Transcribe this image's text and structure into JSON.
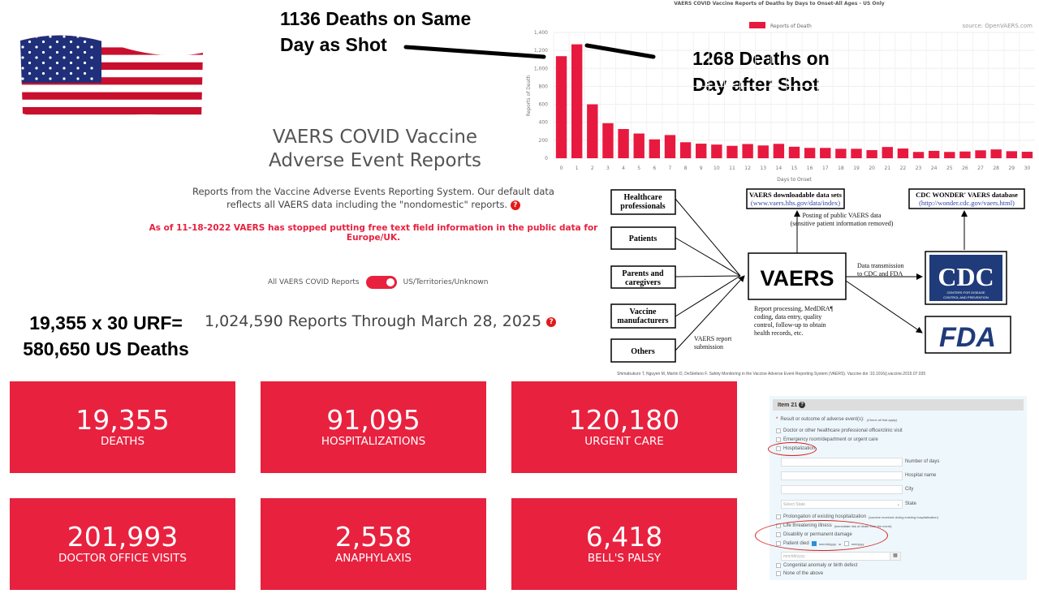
{
  "annotations": {
    "same_day": [
      "1136 Deaths on Same",
      "Day as Shot"
    ],
    "day_after": [
      "1268 Deaths on",
      "Day after Shot"
    ],
    "urf": [
      "19,355 x 30 URF=",
      "580,650 US Deaths"
    ]
  },
  "header": {
    "title_line1": "VAERS COVID Vaccine",
    "title_line2": "Adverse Event Reports",
    "desc_line1": "Reports from the Vaccine Adverse Events Reporting System. Our default data",
    "desc_line2": "reflects all VAERS data including the \"nondomestic\" reports.",
    "help_icon": "?",
    "notice": "As of 11-18-2022 VAERS has stopped putting free text field information in the public data for Europe/UK."
  },
  "toggle": {
    "left_label": "All VAERS COVID Reports",
    "right_label": "US/Territories/Unknown",
    "state": "on"
  },
  "reports_total": "1,024,590 Reports Through March 28, 2025",
  "cards": [
    {
      "value": "19,355",
      "label": "Deaths"
    },
    {
      "value": "91,095",
      "label": "Hospitalizations"
    },
    {
      "value": "120,180",
      "label": "Urgent Care"
    },
    {
      "value": "201,993",
      "label": "Doctor Office Visits"
    },
    {
      "value": "2,558",
      "label": "Anaphylaxis"
    },
    {
      "value": "6,418",
      "label": "Bell's Palsy"
    }
  ],
  "colors": {
    "accent": "#e8213f",
    "bar": "#e8193f"
  },
  "chart_data": {
    "type": "bar",
    "title": "VAERS COVID Vaccine Reports of Deaths by Days to Onset-All Ages - US Only",
    "legend": "Reports of Death",
    "legend_position": "top-center",
    "source": "source: OpenVAERS.com",
    "xlabel": "Days to Onset",
    "ylabel": "Reports of Death",
    "ylim": [
      0,
      1400
    ],
    "yticks": [
      "0",
      "200",
      "400",
      "600",
      "800",
      "1,000",
      "1,200",
      "1,400"
    ],
    "grid": true,
    "categories": [
      "0",
      "1",
      "2",
      "3",
      "4",
      "5",
      "6",
      "7",
      "8",
      "9",
      "10",
      "11",
      "12",
      "13",
      "14",
      "15",
      "16",
      "17",
      "18",
      "19",
      "20",
      "21",
      "22",
      "23",
      "24",
      "25",
      "26",
      "27",
      "28",
      "29",
      "30"
    ],
    "values": [
      1136,
      1268,
      600,
      390,
      325,
      275,
      210,
      258,
      178,
      162,
      152,
      138,
      158,
      142,
      160,
      128,
      115,
      115,
      105,
      105,
      90,
      125,
      108,
      70,
      82,
      70,
      75,
      88,
      98,
      78,
      72
    ]
  },
  "diagram": {
    "sources": [
      [
        "Healthcare",
        "professionals"
      ],
      [
        "Patients"
      ],
      [
        "Parents and",
        "caregivers"
      ],
      [
        "Vaccine",
        "manufacturers"
      ],
      [
        "Others"
      ]
    ],
    "center": "VAERS",
    "submission": [
      "VAERS report",
      "submission"
    ],
    "processing": [
      "Report processing, MedDRA¶",
      "coding, data entry, quality",
      "control, follow-up to obtain",
      "health records, etc."
    ],
    "download_box": [
      "VAERS downloadable data sets",
      "(www.vaers.hhs.gov/data/index)"
    ],
    "wonder_box": [
      "CDC WONDER' VAERS database",
      "(http://wonder.cdc.gov/vaers.html)"
    ],
    "posting": [
      "Posting of public VAERS data",
      "(sensitive patient information removed)"
    ],
    "transmission": [
      "Data transmission",
      "to CDC and FDA"
    ],
    "cdc_logo": "CDC",
    "cdc_sub": [
      "CENTERS FOR DISEASE",
      "CONTROL AND PREVENTION"
    ],
    "fda_logo": "FDA",
    "citation": "Shimabukuro T, Nguyen M, Martin D, DeStefano F.  Safety Monitoring in the Vaccine Adverse Event Reporting System (VAERS).  Vaccine doi :10.1016/j.vaccine.2015.07.035"
  },
  "form": {
    "header": "Item 21",
    "question": "Result or outcome of adverse event(s):",
    "question_note": "(Check all that apply)",
    "options": [
      "Doctor or other healthcare professional office/clinic visit",
      "Emergency room/department or urgent care",
      "Hospitalization"
    ],
    "fields": [
      {
        "label": "Number of days"
      },
      {
        "label": "Hospital name"
      },
      {
        "label": "City"
      },
      {
        "label": "State",
        "placeholder": "Select State"
      }
    ],
    "options2": [
      "Prolongation of existing hospitalization",
      "Life threatening illness",
      "Disability or permanent damage",
      "Patient died"
    ],
    "prolong_note": "(vaccine received during existing hospitalization)",
    "life_note": "(immediate risk of death from the event)",
    "date_fmt1": "mm/dd/yyyy",
    "or": "or",
    "date_fmt2": "mm/yyyy",
    "date_placeholder": "mm/dd/yyyy",
    "options3": [
      "Congenital anomaly or birth defect",
      "None of the above"
    ]
  }
}
